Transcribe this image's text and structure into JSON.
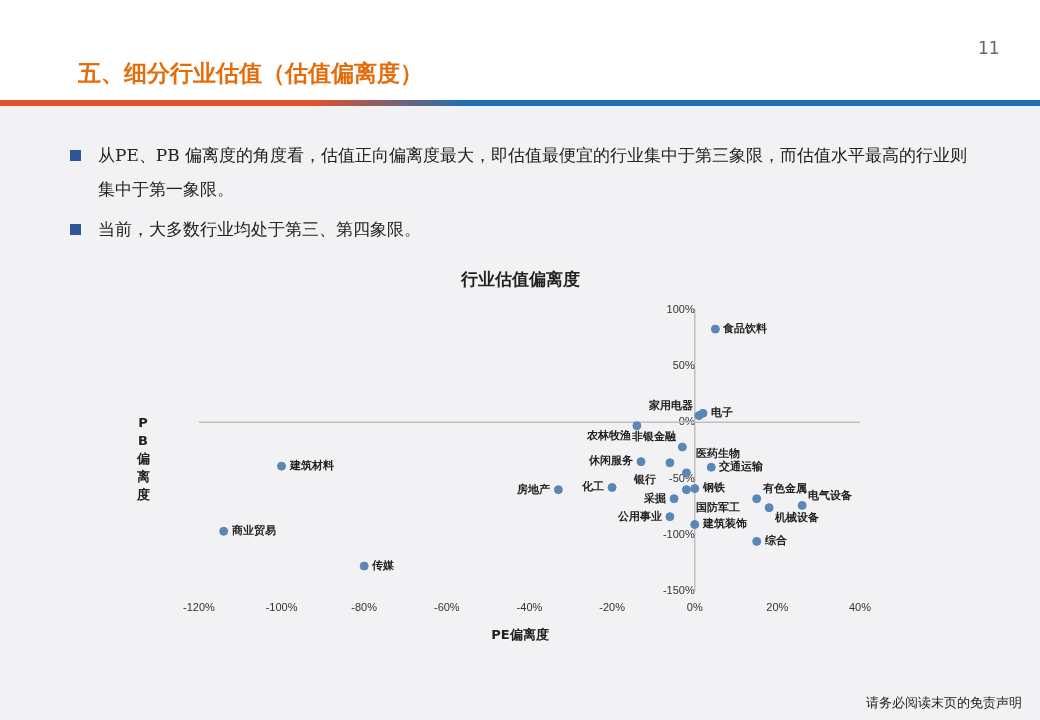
{
  "chart_data": {
    "type": "scatter",
    "title": "五、细分行业估值（估值偏离度）",
    "subtitle": "行业估值偏离度",
    "xlabel": "PE偏离度",
    "ylabel": "PB偏离度",
    "x": [
      5,
      1,
      2,
      -14,
      -3,
      -6,
      -13,
      4,
      -2,
      0,
      -20,
      -5,
      -6,
      -2,
      15,
      18,
      26,
      0,
      15,
      -33,
      -100,
      -114,
      -80
    ],
    "series": [
      {
        "color": "#5b86b8",
        "values": [
          83,
          6,
          8,
          -3,
          -22,
          -36,
          -35,
          -40,
          -45,
          -59,
          -58,
          -68,
          -84,
          -60,
          -68,
          -76,
          -74,
          -91,
          -106,
          -60,
          -39,
          -97,
          -128
        ]
      }
    ],
    "marker": "circle",
    "grid": false,
    "legend": false,
    "ref_lines": [
      {
        "axis": "y",
        "value": 0,
        "color": "#bfbfbf"
      }
    ],
    "xlim": [
      -120,
      40
    ],
    "xticks": [
      {
        "value": -120,
        "label": "-120%"
      },
      {
        "value": -100,
        "label": "-100%"
      },
      {
        "value": -80,
        "label": "-80%"
      },
      {
        "value": -60,
        "label": "-60%"
      },
      {
        "value": -40,
        "label": "-40%"
      },
      {
        "value": -20,
        "label": "-20%"
      },
      {
        "value": 0,
        "label": "0%"
      },
      {
        "value": 20,
        "label": "20%"
      },
      {
        "value": 40,
        "label": "40%"
      }
    ],
    "ylim": [
      -150,
      100
    ],
    "yticks": [
      {
        "value": -150,
        "label": "-150%"
      },
      {
        "value": -100,
        "label": "-100%"
      },
      {
        "value": -50,
        "label": "-50%"
      },
      {
        "value": 0,
        "label": "0%"
      },
      {
        "value": 50,
        "label": "50%"
      },
      {
        "value": 100,
        "label": "100%"
      }
    ],
    "annotations": [
      {
        "text": "食品饮料",
        "x": 5,
        "y": 83
      },
      {
        "text": "家用电器",
        "x": 1,
        "y": 6
      },
      {
        "text": "电子",
        "x": 2,
        "y": 8
      },
      {
        "text": "农林牧渔",
        "x": -14,
        "y": -3
      },
      {
        "text": "非银金融",
        "x": -3,
        "y": -22
      },
      {
        "text": "银行",
        "x": -6,
        "y": -36
      },
      {
        "text": "休闲服务",
        "x": -13,
        "y": -35
      },
      {
        "text": "交通运输",
        "x": 4,
        "y": -40
      },
      {
        "text": "医药生物",
        "x": -2,
        "y": -45
      },
      {
        "text": "钢铁",
        "x": 0,
        "y": -59
      },
      {
        "text": "化工",
        "x": -20,
        "y": -58
      },
      {
        "text": "采掘",
        "x": -5,
        "y": -68
      },
      {
        "text": "公用事业",
        "x": -6,
        "y": -84
      },
      {
        "text": "国防军工",
        "x": -2,
        "y": -60
      },
      {
        "text": "有色金属",
        "x": 15,
        "y": -68
      },
      {
        "text": "机械设备",
        "x": 18,
        "y": -76
      },
      {
        "text": "电气设备",
        "x": 26,
        "y": -74
      },
      {
        "text": "建筑装饰",
        "x": 0,
        "y": -91
      },
      {
        "text": "综合",
        "x": 15,
        "y": -106
      },
      {
        "text": "房地产",
        "x": -33,
        "y": -60
      },
      {
        "text": "建筑材料",
        "x": -100,
        "y": -39
      },
      {
        "text": "商业贸易",
        "x": -114,
        "y": -97
      },
      {
        "text": "传媒",
        "x": -80,
        "y": -128
      },
      "从PE、PB 偏离度的角度看，估值正向偏离度最大，即估值最便宜的行业集中于第三象限，而估值水平最高的行业则集中于第一象限。",
      "当前，大多数行业均处于第三、第四象限。",
      "11",
      "请务必阅读末页的免责声明"
    ]
  }
}
